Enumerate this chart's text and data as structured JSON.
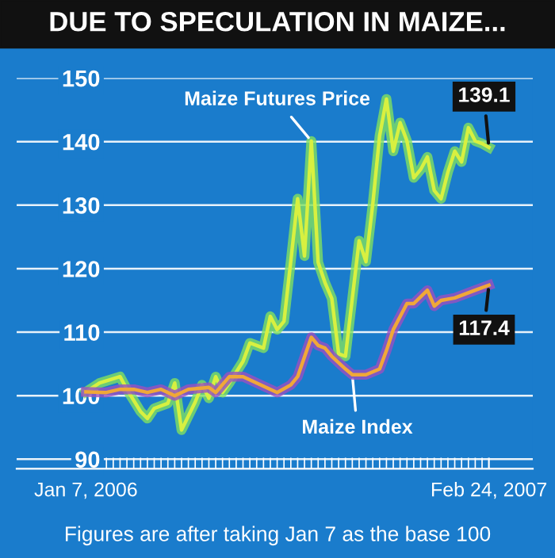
{
  "chart_data": {
    "type": "line",
    "title": "DUE TO SPECULATION IN MAIZE...",
    "annotations": [
      "Figures are after taking Jan 7 as the base 100"
    ],
    "xlim": [
      "2005-10-28",
      "2007-04-10"
    ],
    "xticks": [
      {
        "value": "2006-01-07",
        "label": "Jan 7, 2006"
      },
      {
        "value": "2007-02-24",
        "label": "Feb 24, 2007"
      }
    ],
    "ylim": [
      88.5,
      150
    ],
    "yticks": [
      90,
      100,
      110,
      120,
      130,
      140,
      150
    ],
    "grid": "y",
    "legend": false,
    "series": [
      {
        "name": "Maize Futures Price",
        "color": "#d8f040",
        "x": [
          "2006-01-07",
          "2006-01-21",
          "2006-02-11",
          "2006-02-18",
          "2006-03-04",
          "2006-03-11",
          "2006-03-18",
          "2006-04-01",
          "2006-04-08",
          "2006-04-15",
          "2006-04-29",
          "2006-05-06",
          "2006-05-13",
          "2006-05-20",
          "2006-05-27",
          "2006-06-03",
          "2006-06-17",
          "2006-06-24",
          "2006-07-08",
          "2006-07-15",
          "2006-07-22",
          "2006-07-29",
          "2006-08-05",
          "2006-08-12",
          "2006-08-19",
          "2006-08-26",
          "2006-09-02",
          "2006-09-09",
          "2006-09-16",
          "2006-09-23",
          "2006-09-30",
          "2006-10-07",
          "2006-10-14",
          "2006-10-21",
          "2006-10-28",
          "2006-11-04",
          "2006-11-11",
          "2006-11-18",
          "2006-11-25",
          "2006-12-02",
          "2006-12-09",
          "2006-12-16",
          "2006-12-23",
          "2006-12-30",
          "2007-01-06",
          "2007-01-13",
          "2007-01-20",
          "2007-01-27",
          "2007-02-03",
          "2007-02-10",
          "2007-02-17",
          "2007-02-24"
        ],
        "values": [
          100.6,
          102,
          103,
          101,
          97.5,
          96.4,
          98,
          98.8,
          102,
          94.6,
          99,
          101.7,
          99.6,
          103,
          100.5,
          102,
          105.4,
          108.3,
          107.5,
          112.5,
          110.4,
          111.7,
          121.2,
          131,
          122,
          140.1,
          121,
          117.8,
          115.3,
          106.6,
          106.2,
          115.3,
          124.4,
          121.1,
          130.2,
          140.9,
          146.7,
          138.5,
          143,
          140.1,
          134.3,
          135.6,
          137.6,
          132.3,
          131,
          135.2,
          138.5,
          136.8,
          142.2,
          140.1,
          139.7,
          139.1
        ],
        "value_labels": [
          null,
          null,
          null,
          null,
          null,
          null,
          null,
          null,
          null,
          null,
          null,
          null,
          null,
          null,
          null,
          null,
          null,
          null,
          null,
          null,
          null,
          null,
          null,
          null,
          null,
          null,
          null,
          null,
          null,
          null,
          null,
          null,
          null,
          null,
          null,
          null,
          null,
          null,
          null,
          null,
          null,
          null,
          null,
          null,
          null,
          null,
          null,
          null,
          null,
          null,
          null,
          "139.1"
        ]
      },
      {
        "name": "Maize Index",
        "color": "#f0a838",
        "x": [
          "2006-01-07",
          "2006-01-28",
          "2006-02-11",
          "2006-02-25",
          "2006-03-11",
          "2006-03-25",
          "2006-04-08",
          "2006-04-22",
          "2006-05-13",
          "2006-05-20",
          "2006-06-03",
          "2006-06-17",
          "2006-07-01",
          "2006-07-15",
          "2006-07-22",
          "2006-08-05",
          "2006-08-12",
          "2006-08-26",
          "2006-09-02",
          "2006-09-09",
          "2006-09-16",
          "2006-09-30",
          "2006-10-07",
          "2006-10-14",
          "2006-10-21",
          "2006-11-04",
          "2006-11-11",
          "2006-11-18",
          "2006-12-02",
          "2006-12-09",
          "2006-12-23",
          "2006-12-30",
          "2007-01-06",
          "2007-01-20",
          "2007-01-27",
          "2007-02-10",
          "2007-02-24"
        ],
        "values": [
          100.6,
          100.5,
          101,
          101,
          100.5,
          101,
          100,
          101,
          101.3,
          100.5,
          103,
          103,
          102,
          101,
          100.5,
          101.7,
          103,
          109.2,
          107.9,
          107.5,
          106.2,
          104.2,
          103.3,
          103.3,
          103.3,
          104.2,
          107.1,
          110.4,
          114.5,
          114.5,
          116.6,
          114.1,
          115,
          115.4,
          115.8,
          116.6,
          117.4
        ],
        "value_labels": [
          null,
          null,
          null,
          null,
          null,
          null,
          null,
          null,
          null,
          null,
          null,
          null,
          null,
          null,
          null,
          null,
          null,
          null,
          null,
          null,
          null,
          null,
          null,
          null,
          null,
          null,
          null,
          null,
          null,
          null,
          null,
          null,
          null,
          null,
          null,
          null,
          "117.4"
        ]
      }
    ]
  }
}
